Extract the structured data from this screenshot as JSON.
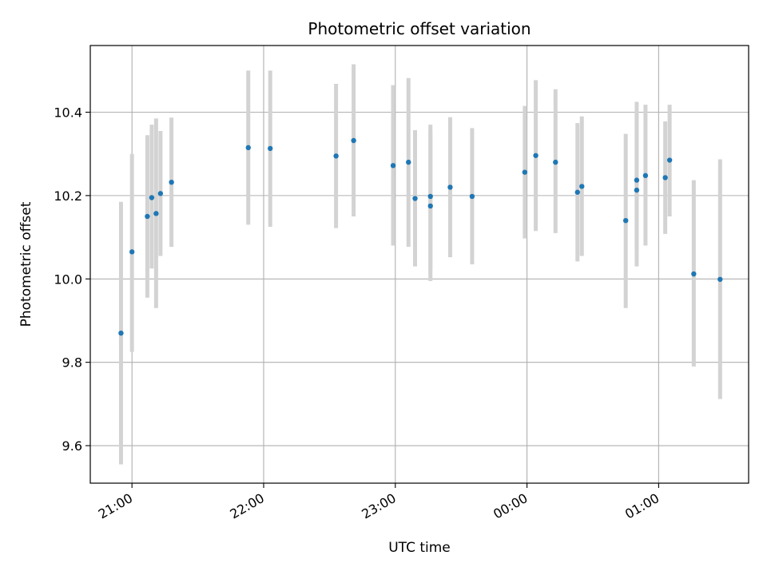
{
  "chart_data": {
    "type": "scatter",
    "title": "Photometric offset variation",
    "xlabel": "UTC time",
    "ylabel": "Photometric offset",
    "x_unit": "UTC",
    "xlim": [
      "20:41",
      "01:41"
    ],
    "ylim": [
      9.51,
      10.56
    ],
    "x_ticks": [
      {
        "time": "21:00",
        "label": "21:00"
      },
      {
        "time": "22:00",
        "label": "22:00"
      },
      {
        "time": "23:00",
        "label": "23:00"
      },
      {
        "time": "00:00",
        "label": "00:00"
      },
      {
        "time": "01:00",
        "label": "01:00"
      }
    ],
    "y_ticks": [
      9.6,
      9.8,
      10.0,
      10.2,
      10.4
    ],
    "grid": true,
    "colors": {
      "point": "#1f77b4",
      "errorbar": "#d3d3d3",
      "grid": "#b0b0b0",
      "axes": "#000000"
    },
    "points": [
      {
        "x": "20:55",
        "y": 9.87,
        "lo": 9.555,
        "hi": 10.185
      },
      {
        "x": "21:00",
        "y": 10.065,
        "lo": 9.825,
        "hi": 10.3
      },
      {
        "x": "21:07",
        "y": 10.15,
        "lo": 9.955,
        "hi": 10.345
      },
      {
        "x": "21:09",
        "y": 10.195,
        "lo": 10.025,
        "hi": 10.37
      },
      {
        "x": "21:11",
        "y": 10.157,
        "lo": 9.93,
        "hi": 10.385
      },
      {
        "x": "21:13",
        "y": 10.205,
        "lo": 10.055,
        "hi": 10.355
      },
      {
        "x": "21:18",
        "y": 10.232,
        "lo": 10.077,
        "hi": 10.387
      },
      {
        "x": "21:53",
        "y": 10.315,
        "lo": 10.13,
        "hi": 10.5
      },
      {
        "x": "22:03",
        "y": 10.313,
        "lo": 10.125,
        "hi": 10.5
      },
      {
        "x": "22:33",
        "y": 10.295,
        "lo": 10.122,
        "hi": 10.468
      },
      {
        "x": "22:41",
        "y": 10.332,
        "lo": 10.15,
        "hi": 10.515
      },
      {
        "x": "22:59",
        "y": 10.272,
        "lo": 10.08,
        "hi": 10.465
      },
      {
        "x": "23:06",
        "y": 10.28,
        "lo": 10.077,
        "hi": 10.482
      },
      {
        "x": "23:09",
        "y": 10.193,
        "lo": 10.03,
        "hi": 10.357
      },
      {
        "x": "23:16",
        "y": 10.198,
        "lo": 10.02,
        "hi": 10.37
      },
      {
        "x": "23:16",
        "y": 10.175,
        "lo": 9.995,
        "hi": 10.355
      },
      {
        "x": "23:25",
        "y": 10.22,
        "lo": 10.052,
        "hi": 10.388
      },
      {
        "x": "23:35",
        "y": 10.198,
        "lo": 10.035,
        "hi": 10.362
      },
      {
        "x": "23:59",
        "y": 10.256,
        "lo": 10.097,
        "hi": 10.415
      },
      {
        "x": "00:04",
        "y": 10.296,
        "lo": 10.115,
        "hi": 10.477
      },
      {
        "x": "00:13",
        "y": 10.28,
        "lo": 10.11,
        "hi": 10.455
      },
      {
        "x": "00:23",
        "y": 10.208,
        "lo": 10.042,
        "hi": 10.374
      },
      {
        "x": "00:25",
        "y": 10.222,
        "lo": 10.055,
        "hi": 10.39
      },
      {
        "x": "00:45",
        "y": 10.14,
        "lo": 9.93,
        "hi": 10.348
      },
      {
        "x": "00:50",
        "y": 10.237,
        "lo": 10.07,
        "hi": 10.425
      },
      {
        "x": "00:50",
        "y": 10.213,
        "lo": 10.03,
        "hi": 10.4
      },
      {
        "x": "00:54",
        "y": 10.248,
        "lo": 10.08,
        "hi": 10.418
      },
      {
        "x": "01:03",
        "y": 10.243,
        "lo": 10.108,
        "hi": 10.378
      },
      {
        "x": "01:05",
        "y": 10.285,
        "lo": 10.15,
        "hi": 10.418
      },
      {
        "x": "01:16",
        "y": 10.012,
        "lo": 9.79,
        "hi": 10.237
      },
      {
        "x": "01:28",
        "y": 9.999,
        "lo": 9.712,
        "hi": 10.287
      }
    ]
  }
}
